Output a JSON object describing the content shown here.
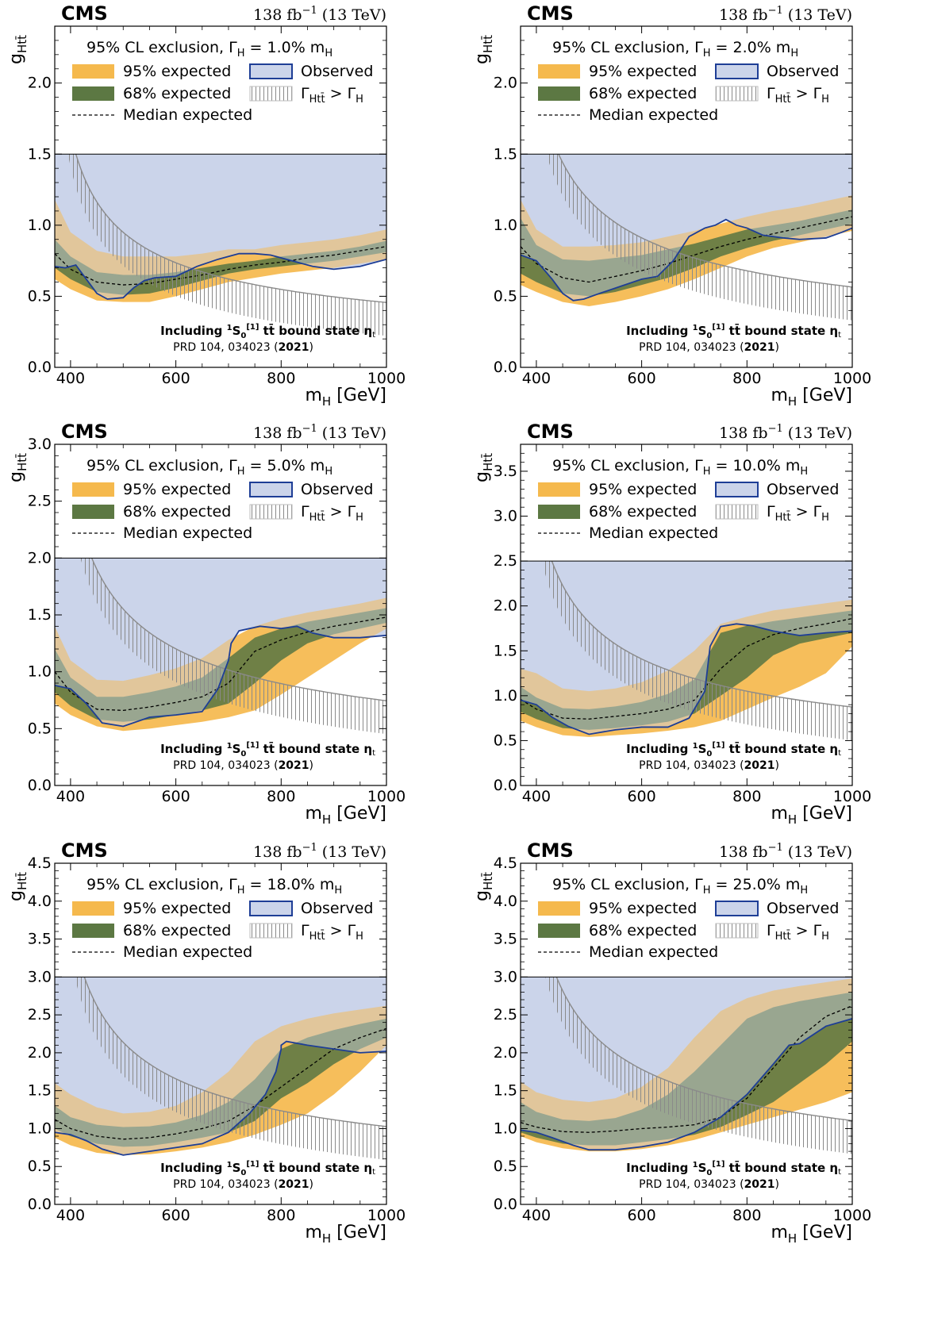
{
  "common": {
    "experiment": "CMS",
    "lumi_label": "138 fb",
    "lumi_exp": "−1",
    "energy_label": " (13 TeV)",
    "cl_prefix": "95% CL exclusion, Γ",
    "cl_gamma_sub": "H",
    "cl_eq": " = ",
    "cl_suffix": "% m",
    "cl_m_sub": "H",
    "legend": {
      "expected95": "95% expected",
      "expected68": "68% expected",
      "median": "Median expected",
      "observed": "Observed",
      "unphysical_main": "Γ",
      "unphysical_sub": "Htt̄",
      "unphysical_rest": " > Γ",
      "unphysical_sub2": "H"
    },
    "annot_part1": "Including ",
    "annot_sup": "1",
    "annot_s": "S",
    "annot_sub0": "0",
    "annot_sup2": "[1]",
    "annot_part2": " tt̄ bound state η",
    "annot_sub_t": "t",
    "ref_text": "PRD 104, 034023 (",
    "ref_year": "2021",
    "ref_close": ")",
    "xlabel_main": "m",
    "xlabel_sub": "H",
    "xlabel_unit": " [GeV]",
    "ylabel_main": "g",
    "ylabel_sub": "Htt̄",
    "colors": {
      "band95": "#f5b94d",
      "band68": "#5c7843",
      "observed_line": "#1e3e96",
      "observed_fill": "#cbd4ea",
      "unphysical": "#8a8a8a",
      "median": "#000000"
    }
  },
  "chart_data": [
    {
      "type": "area",
      "width_percent": "1.0",
      "xlim": [
        370,
        1000
      ],
      "ylim": [
        0,
        2.4
      ],
      "legend_boundary": 1.5,
      "xticks": [
        400,
        600,
        800,
        1000
      ],
      "yticks": [
        0.0,
        0.5,
        1.0,
        1.5,
        2.0
      ],
      "x": [
        370,
        400,
        450,
        500,
        550,
        600,
        650,
        700,
        750,
        800,
        850,
        900,
        950,
        1000
      ],
      "exp95_lo": [
        0.62,
        0.55,
        0.47,
        0.46,
        0.46,
        0.5,
        0.55,
        0.6,
        0.63,
        0.66,
        0.68,
        0.7,
        0.73,
        0.76
      ],
      "exp95_hi": [
        1.18,
        0.95,
        0.82,
        0.78,
        0.78,
        0.78,
        0.8,
        0.83,
        0.83,
        0.86,
        0.88,
        0.9,
        0.93,
        0.97
      ],
      "exp68_lo": [
        0.7,
        0.62,
        0.53,
        0.51,
        0.52,
        0.56,
        0.61,
        0.66,
        0.69,
        0.71,
        0.73,
        0.75,
        0.78,
        0.81
      ],
      "exp68_hi": [
        0.9,
        0.78,
        0.67,
        0.65,
        0.65,
        0.67,
        0.7,
        0.73,
        0.75,
        0.78,
        0.8,
        0.82,
        0.85,
        0.89
      ],
      "median": [
        0.8,
        0.69,
        0.6,
        0.58,
        0.59,
        0.62,
        0.65,
        0.69,
        0.72,
        0.74,
        0.77,
        0.79,
        0.82,
        0.85
      ],
      "observed_x": [
        370,
        390,
        410,
        430,
        450,
        470,
        500,
        520,
        540,
        560,
        600,
        640,
        680,
        700,
        720,
        750,
        780,
        800,
        830,
        860,
        900,
        950,
        980,
        1000
      ],
      "observed_y": [
        0.71,
        0.7,
        0.72,
        0.62,
        0.52,
        0.48,
        0.49,
        0.56,
        0.61,
        0.63,
        0.64,
        0.71,
        0.76,
        0.78,
        0.8,
        0.8,
        0.79,
        0.77,
        0.74,
        0.71,
        0.69,
        0.71,
        0.74,
        0.76
      ],
      "unphysical_coeff": 150
    },
    {
      "type": "area",
      "width_percent": "2.0",
      "xlim": [
        370,
        1000
      ],
      "ylim": [
        0,
        2.4
      ],
      "legend_boundary": 1.5,
      "xticks": [
        400,
        600,
        800,
        1000
      ],
      "yticks": [
        0.0,
        0.5,
        1.0,
        1.5,
        2.0
      ],
      "x": [
        370,
        400,
        450,
        500,
        550,
        600,
        650,
        700,
        750,
        800,
        850,
        900,
        950,
        1000
      ],
      "exp95_lo": [
        0.58,
        0.53,
        0.46,
        0.43,
        0.46,
        0.5,
        0.55,
        0.62,
        0.7,
        0.78,
        0.84,
        0.88,
        0.92,
        0.96
      ],
      "exp95_hi": [
        1.18,
        0.97,
        0.85,
        0.85,
        0.86,
        0.88,
        0.92,
        0.96,
        1.01,
        1.06,
        1.1,
        1.13,
        1.17,
        1.21
      ],
      "exp68_lo": [
        0.66,
        0.6,
        0.52,
        0.5,
        0.53,
        0.58,
        0.63,
        0.7,
        0.78,
        0.84,
        0.89,
        0.93,
        0.97,
        1.01
      ],
      "exp68_hi": [
        1.05,
        0.86,
        0.76,
        0.75,
        0.77,
        0.79,
        0.83,
        0.87,
        0.92,
        0.97,
        1.0,
        1.03,
        1.07,
        1.11
      ],
      "median": [
        0.85,
        0.73,
        0.63,
        0.6,
        0.64,
        0.68,
        0.73,
        0.79,
        0.85,
        0.9,
        0.94,
        0.98,
        1.02,
        1.06
      ],
      "observed_x": [
        370,
        400,
        430,
        450,
        470,
        490,
        520,
        560,
        600,
        630,
        660,
        690,
        720,
        740,
        760,
        780,
        800,
        830,
        870,
        900,
        950,
        980,
        1000
      ],
      "observed_y": [
        0.79,
        0.75,
        0.62,
        0.52,
        0.47,
        0.48,
        0.52,
        0.57,
        0.62,
        0.64,
        0.75,
        0.92,
        0.98,
        1.0,
        1.04,
        1.0,
        0.98,
        0.93,
        0.91,
        0.9,
        0.91,
        0.95,
        0.98
      ],
      "unphysical_coeff": 230
    },
    {
      "type": "area",
      "width_percent": "5.0",
      "xlim": [
        370,
        1000
      ],
      "ylim": [
        0,
        3.0
      ],
      "legend_boundary": 2.0,
      "xticks": [
        400,
        600,
        800,
        1000
      ],
      "yticks": [
        0.0,
        0.5,
        1.0,
        1.5,
        2.0,
        2.5,
        3.0
      ],
      "x": [
        370,
        400,
        450,
        500,
        550,
        600,
        650,
        700,
        750,
        800,
        850,
        900,
        950,
        1000
      ],
      "exp95_lo": [
        0.72,
        0.62,
        0.52,
        0.48,
        0.5,
        0.53,
        0.56,
        0.6,
        0.66,
        0.8,
        0.95,
        1.1,
        1.25,
        1.38
      ],
      "exp95_hi": [
        1.4,
        1.1,
        0.93,
        0.92,
        0.97,
        1.03,
        1.12,
        1.28,
        1.4,
        1.47,
        1.52,
        1.56,
        1.6,
        1.65
      ],
      "exp68_lo": [
        0.82,
        0.7,
        0.58,
        0.56,
        0.58,
        0.62,
        0.66,
        0.72,
        0.9,
        1.1,
        1.25,
        1.33,
        1.38,
        1.43
      ],
      "exp68_hi": [
        1.2,
        0.95,
        0.78,
        0.78,
        0.82,
        0.87,
        0.95,
        1.12,
        1.3,
        1.38,
        1.44,
        1.48,
        1.52,
        1.56
      ],
      "median": [
        1.0,
        0.82,
        0.67,
        0.66,
        0.69,
        0.73,
        0.78,
        0.9,
        1.18,
        1.28,
        1.35,
        1.4,
        1.44,
        1.48
      ],
      "observed_x": [
        370,
        400,
        430,
        460,
        500,
        550,
        600,
        650,
        680,
        700,
        705,
        720,
        760,
        800,
        830,
        860,
        900,
        950,
        1000
      ],
      "observed_y": [
        0.88,
        0.85,
        0.72,
        0.55,
        0.52,
        0.6,
        0.62,
        0.65,
        0.85,
        1.1,
        1.25,
        1.36,
        1.4,
        1.38,
        1.4,
        1.34,
        1.3,
        1.3,
        1.32
      ],
      "unphysical_coeff": 400
    },
    {
      "type": "area",
      "width_percent": "10.0",
      "xlim": [
        370,
        1000
      ],
      "ylim": [
        0,
        3.8
      ],
      "legend_boundary": 2.5,
      "xticks": [
        400,
        600,
        800,
        1000
      ],
      "yticks": [
        0.0,
        0.5,
        1.0,
        1.5,
        2.0,
        2.5,
        3.0,
        3.5
      ],
      "x": [
        370,
        400,
        450,
        500,
        550,
        600,
        650,
        700,
        750,
        800,
        850,
        900,
        950,
        1000
      ],
      "exp95_lo": [
        0.72,
        0.65,
        0.56,
        0.54,
        0.56,
        0.58,
        0.61,
        0.65,
        0.72,
        0.85,
        0.98,
        1.1,
        1.25,
        1.55
      ],
      "exp95_hi": [
        1.3,
        1.25,
        1.08,
        1.05,
        1.08,
        1.15,
        1.28,
        1.5,
        1.8,
        1.88,
        1.95,
        1.99,
        2.03,
        2.07
      ],
      "exp68_lo": [
        0.82,
        0.74,
        0.64,
        0.62,
        0.64,
        0.67,
        0.71,
        0.8,
        1.0,
        1.2,
        1.45,
        1.58,
        1.64,
        1.7
      ],
      "exp68_hi": [
        1.1,
        0.98,
        0.86,
        0.85,
        0.88,
        0.93,
        1.02,
        1.18,
        1.7,
        1.78,
        1.83,
        1.87,
        1.91,
        1.95
      ],
      "median": [
        0.96,
        0.85,
        0.75,
        0.74,
        0.77,
        0.8,
        0.85,
        0.95,
        1.3,
        1.55,
        1.68,
        1.75,
        1.8,
        1.86
      ],
      "observed_x": [
        370,
        400,
        430,
        460,
        500,
        550,
        600,
        650,
        690,
        720,
        730,
        750,
        780,
        810,
        850,
        900,
        950,
        1000
      ],
      "observed_y": [
        0.95,
        0.9,
        0.76,
        0.66,
        0.57,
        0.62,
        0.65,
        0.65,
        0.75,
        1.05,
        1.55,
        1.77,
        1.8,
        1.78,
        1.72,
        1.67,
        1.7,
        1.72
      ],
      "unphysical_coeff": 550
    },
    {
      "type": "area",
      "width_percent": "18.0",
      "xlim": [
        370,
        1000
      ],
      "ylim": [
        0,
        4.5
      ],
      "legend_boundary": 3.0,
      "xticks": [
        400,
        600,
        800,
        1000
      ],
      "yticks": [
        0.0,
        0.5,
        1.0,
        1.5,
        2.0,
        2.5,
        3.0,
        3.5,
        4.0,
        4.5
      ],
      "x": [
        370,
        400,
        450,
        500,
        550,
        600,
        650,
        700,
        750,
        800,
        850,
        900,
        950,
        1000
      ],
      "exp95_lo": [
        0.88,
        0.78,
        0.68,
        0.65,
        0.66,
        0.7,
        0.75,
        0.82,
        0.92,
        1.05,
        1.2,
        1.45,
        1.75,
        2.1
      ],
      "exp95_hi": [
        1.6,
        1.45,
        1.28,
        1.2,
        1.22,
        1.3,
        1.48,
        1.75,
        2.15,
        2.35,
        2.45,
        2.52,
        2.57,
        2.62
      ],
      "exp68_lo": [
        1.0,
        0.9,
        0.8,
        0.76,
        0.77,
        0.82,
        0.88,
        0.95,
        1.1,
        1.4,
        1.6,
        1.85,
        2.05,
        2.2
      ],
      "exp68_hi": [
        1.3,
        1.15,
        1.05,
        1.02,
        1.03,
        1.08,
        1.18,
        1.35,
        1.65,
        2.05,
        2.2,
        2.3,
        2.38,
        2.45
      ],
      "median": [
        1.12,
        1.0,
        0.9,
        0.86,
        0.88,
        0.93,
        1.0,
        1.1,
        1.3,
        1.55,
        1.8,
        2.05,
        2.2,
        2.32
      ],
      "observed_x": [
        370,
        400,
        430,
        460,
        500,
        550,
        600,
        650,
        700,
        740,
        770,
        790,
        800,
        800,
        810,
        850,
        900,
        950,
        1000
      ],
      "observed_y": [
        0.95,
        0.92,
        0.84,
        0.73,
        0.65,
        0.7,
        0.75,
        0.8,
        0.95,
        1.2,
        1.45,
        1.75,
        2.05,
        2.1,
        2.15,
        2.1,
        2.05,
        2.0,
        2.02
      ],
      "unphysical_coeff": 760
    },
    {
      "type": "area",
      "width_percent": "25.0",
      "xlim": [
        370,
        1000
      ],
      "ylim": [
        0,
        4.5
      ],
      "legend_boundary": 3.0,
      "xticks": [
        400,
        600,
        800,
        1000
      ],
      "yticks": [
        0.0,
        0.5,
        1.0,
        1.5,
        2.0,
        2.5,
        3.0,
        3.5,
        4.0,
        4.5
      ],
      "x": [
        370,
        400,
        450,
        500,
        550,
        600,
        650,
        700,
        750,
        800,
        850,
        900,
        950,
        1000
      ],
      "exp95_lo": [
        0.9,
        0.82,
        0.74,
        0.7,
        0.7,
        0.73,
        0.78,
        0.85,
        0.95,
        1.05,
        1.15,
        1.25,
        1.35,
        1.48
      ],
      "exp95_hi": [
        1.62,
        1.48,
        1.38,
        1.35,
        1.4,
        1.55,
        1.8,
        2.2,
        2.55,
        2.72,
        2.82,
        2.88,
        2.93,
        2.98
      ],
      "exp68_lo": [
        0.95,
        0.88,
        0.8,
        0.78,
        0.78,
        0.82,
        0.86,
        0.92,
        1.02,
        1.18,
        1.35,
        1.6,
        1.85,
        2.15
      ],
      "exp68_hi": [
        1.35,
        1.22,
        1.12,
        1.1,
        1.14,
        1.25,
        1.45,
        1.75,
        2.1,
        2.45,
        2.6,
        2.68,
        2.74,
        2.8
      ],
      "median": [
        1.08,
        1.02,
        0.96,
        0.95,
        0.97,
        1.0,
        1.02,
        1.05,
        1.15,
        1.4,
        1.8,
        2.2,
        2.48,
        2.62
      ],
      "observed_x": [
        370,
        400,
        430,
        470,
        500,
        550,
        600,
        650,
        700,
        750,
        800,
        850,
        880,
        900,
        950,
        1000
      ],
      "observed_y": [
        0.98,
        0.95,
        0.88,
        0.78,
        0.72,
        0.72,
        0.76,
        0.82,
        0.95,
        1.15,
        1.45,
        1.85,
        2.1,
        2.12,
        2.35,
        2.45
      ],
      "unphysical_coeff": 880
    }
  ]
}
